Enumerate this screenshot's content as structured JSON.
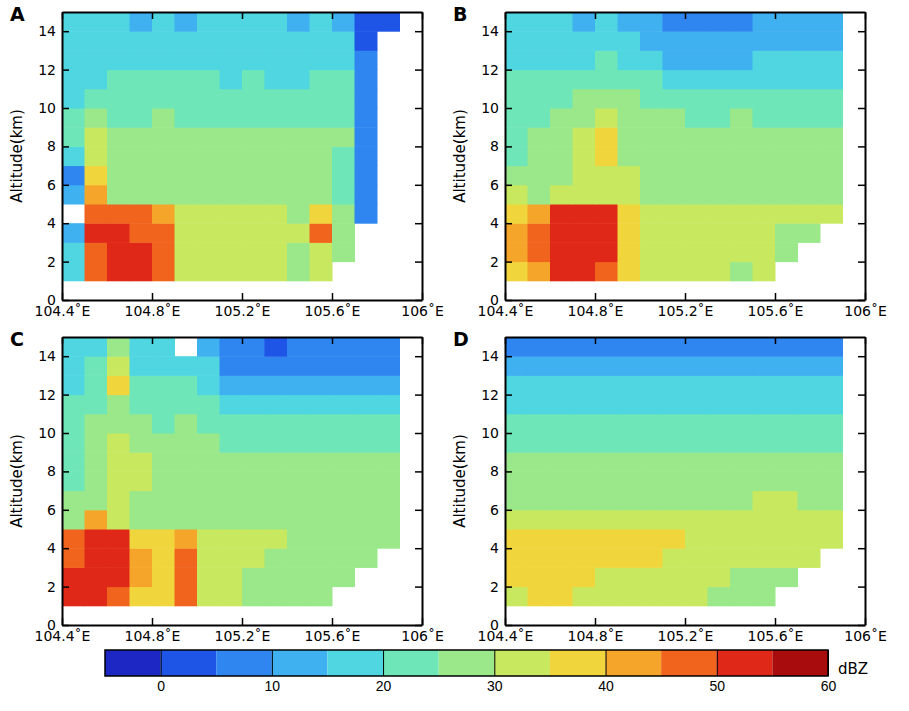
{
  "chart_data": [
    {
      "type": "heatmap",
      "title": "A",
      "y_label": "Altitude(km)",
      "x": [
        104.4,
        104.5,
        104.6,
        104.7,
        104.8,
        104.9,
        105.0,
        105.1,
        105.2,
        105.3,
        105.4,
        105.5,
        105.6,
        105.7,
        105.8,
        105.9
      ],
      "y": [
        1,
        2,
        3,
        4,
        5,
        6,
        7,
        8,
        9,
        10,
        11,
        12,
        13,
        14,
        15
      ],
      "values": [
        [
          18,
          45,
          52,
          50,
          48,
          33,
          32,
          32,
          30,
          30,
          28,
          30,
          null,
          null,
          null
        ],
        [
          15,
          48,
          52,
          50,
          45,
          34,
          32,
          32,
          30,
          30,
          28,
          33,
          25,
          null,
          null
        ],
        [
          12,
          50,
          50,
          48,
          45,
          34,
          32,
          33,
          32,
          30,
          30,
          45,
          28,
          null,
          null
        ],
        [
          null,
          45,
          48,
          45,
          42,
          33,
          32,
          32,
          30,
          30,
          28,
          38,
          25,
          5,
          null
        ],
        [
          10,
          40,
          28,
          27,
          27,
          27,
          25,
          25,
          25,
          25,
          25,
          25,
          22,
          5,
          null
        ],
        [
          5,
          35,
          25,
          25,
          25,
          25,
          25,
          25,
          25,
          25,
          25,
          25,
          22,
          5,
          null
        ],
        [
          15,
          30,
          25,
          25,
          27,
          25,
          25,
          25,
          25,
          25,
          25,
          25,
          22,
          8,
          null
        ],
        [
          20,
          30,
          25,
          25,
          27,
          25,
          25,
          25,
          25,
          25,
          25,
          25,
          25,
          8,
          null
        ],
        [
          20,
          28,
          22,
          22,
          25,
          22,
          22,
          22,
          22,
          22,
          22,
          22,
          22,
          5,
          null
        ],
        [
          18,
          20,
          22,
          20,
          22,
          20,
          20,
          20,
          20,
          20,
          20,
          22,
          20,
          5,
          null
        ],
        [
          18,
          18,
          20,
          20,
          20,
          20,
          20,
          18,
          20,
          18,
          18,
          20,
          20,
          5,
          null
        ],
        [
          15,
          15,
          18,
          18,
          18,
          15,
          15,
          18,
          18,
          18,
          18,
          18,
          18,
          5,
          null
        ],
        [
          15,
          15,
          15,
          15,
          15,
          15,
          15,
          15,
          15,
          15,
          15,
          15,
          15,
          0,
          null
        ],
        [
          15,
          15,
          15,
          12,
          15,
          12,
          15,
          15,
          15,
          15,
          12,
          15,
          10,
          0,
          0
        ]
      ],
      "xlim": [
        104.4,
        106
      ],
      "xticks": [
        {
          "value": 104.4,
          "label": "104.4˚E"
        },
        {
          "value": 104.8,
          "label": "104.8˚E"
        },
        {
          "value": 105.2,
          "label": "105.2˚E"
        },
        {
          "value": 105.6,
          "label": "105.6˚E"
        },
        {
          "value": 106,
          "label": "106˚E"
        }
      ],
      "ylim": [
        0,
        15
      ],
      "yticks": [
        0,
        2,
        4,
        6,
        8,
        10,
        12,
        14
      ]
    },
    {
      "type": "heatmap",
      "title": "B",
      "y_label": "Altitude(km)",
      "x": [
        104.4,
        104.5,
        104.6,
        104.7,
        104.8,
        104.9,
        105.0,
        105.1,
        105.2,
        105.3,
        105.4,
        105.5,
        105.6,
        105.7,
        105.8,
        105.9
      ],
      "y": [
        1,
        2,
        3,
        4,
        5,
        6,
        7,
        8,
        9,
        10,
        11,
        12,
        13,
        14,
        15
      ],
      "values": [
        [
          38,
          40,
          50,
          50,
          48,
          35,
          32,
          32,
          30,
          30,
          28,
          30,
          null,
          null,
          null
        ],
        [
          40,
          45,
          52,
          52,
          50,
          35,
          33,
          32,
          30,
          30,
          30,
          30,
          28,
          null,
          null
        ],
        [
          42,
          45,
          50,
          52,
          52,
          38,
          33,
          32,
          32,
          30,
          30,
          30,
          28,
          28,
          null
        ],
        [
          38,
          40,
          50,
          52,
          50,
          36,
          33,
          33,
          32,
          32,
          30,
          30,
          30,
          30,
          30
        ],
        [
          30,
          25,
          32,
          32,
          32,
          30,
          28,
          28,
          28,
          28,
          28,
          28,
          28,
          28,
          28
        ],
        [
          25,
          25,
          28,
          30,
          32,
          30,
          28,
          27,
          27,
          27,
          27,
          27,
          27,
          27,
          25
        ],
        [
          22,
          25,
          28,
          30,
          35,
          28,
          27,
          27,
          27,
          27,
          27,
          27,
          27,
          25,
          25
        ],
        [
          22,
          25,
          28,
          30,
          35,
          27,
          25,
          25,
          25,
          25,
          25,
          25,
          25,
          25,
          25
        ],
        [
          22,
          22,
          25,
          25,
          32,
          25,
          25,
          25,
          22,
          22,
          25,
          22,
          22,
          22,
          22
        ],
        [
          20,
          22,
          22,
          25,
          28,
          25,
          22,
          22,
          22,
          22,
          22,
          22,
          22,
          20,
          20
        ],
        [
          20,
          20,
          20,
          20,
          22,
          20,
          20,
          18,
          18,
          18,
          18,
          18,
          18,
          18,
          18
        ],
        [
          18,
          18,
          18,
          18,
          20,
          18,
          15,
          12,
          12,
          12,
          12,
          15,
          15,
          15,
          15
        ],
        [
          18,
          18,
          15,
          15,
          18,
          15,
          12,
          10,
          10,
          10,
          10,
          12,
          12,
          12,
          12
        ],
        [
          15,
          15,
          15,
          12,
          15,
          12,
          10,
          5,
          5,
          8,
          8,
          10,
          10,
          10,
          10
        ]
      ],
      "xlim": [
        104.4,
        106
      ],
      "xticks": [
        {
          "value": 104.4,
          "label": "104.4˚E"
        },
        {
          "value": 104.8,
          "label": "104.8˚E"
        },
        {
          "value": 105.2,
          "label": "105.2˚E"
        },
        {
          "value": 105.6,
          "label": "105.6˚E"
        },
        {
          "value": 106,
          "label": "106˚E"
        }
      ],
      "ylim": [
        0,
        15
      ],
      "yticks": [
        0,
        2,
        4,
        6,
        8,
        10,
        12,
        14
      ]
    },
    {
      "type": "heatmap",
      "title": "C",
      "y_label": "Altitude(km)",
      "x": [
        104.4,
        104.5,
        104.6,
        104.7,
        104.8,
        104.9,
        105.0,
        105.1,
        105.2,
        105.3,
        105.4,
        105.5,
        105.6,
        105.7,
        105.8,
        105.9
      ],
      "y": [
        1,
        2,
        3,
        4,
        5,
        6,
        7,
        8,
        9,
        10,
        11,
        12,
        13,
        14,
        15
      ],
      "values": [
        [
          50,
          52,
          48,
          38,
          35,
          45,
          30,
          30,
          28,
          28,
          28,
          28,
          null,
          null,
          null
        ],
        [
          50,
          52,
          50,
          40,
          38,
          45,
          30,
          30,
          28,
          28,
          28,
          28,
          28,
          null,
          null
        ],
        [
          48,
          52,
          52,
          40,
          38,
          48,
          32,
          30,
          30,
          28,
          28,
          28,
          28,
          28,
          null
        ],
        [
          45,
          52,
          50,
          38,
          35,
          40,
          32,
          30,
          30,
          30,
          28,
          28,
          28,
          28,
          28
        ],
        [
          28,
          40,
          30,
          28,
          28,
          28,
          28,
          28,
          28,
          28,
          28,
          28,
          28,
          28,
          28
        ],
        [
          25,
          28,
          30,
          28,
          28,
          28,
          28,
          28,
          28,
          28,
          28,
          28,
          28,
          28,
          28
        ],
        [
          22,
          28,
          32,
          30,
          28,
          28,
          28,
          28,
          28,
          28,
          28,
          25,
          25,
          25,
          25
        ],
        [
          22,
          28,
          32,
          30,
          28,
          28,
          28,
          25,
          25,
          25,
          25,
          25,
          25,
          25,
          25
        ],
        [
          22,
          28,
          30,
          28,
          25,
          28,
          25,
          22,
          22,
          22,
          22,
          22,
          22,
          22,
          22
        ],
        [
          20,
          25,
          28,
          25,
          22,
          25,
          22,
          20,
          20,
          20,
          20,
          20,
          20,
          20,
          20
        ],
        [
          20,
          22,
          28,
          22,
          22,
          22,
          20,
          18,
          15,
          15,
          15,
          15,
          15,
          15,
          15
        ],
        [
          18,
          22,
          38,
          20,
          20,
          20,
          18,
          12,
          10,
          10,
          10,
          10,
          10,
          10,
          10
        ],
        [
          18,
          20,
          30,
          18,
          18,
          18,
          15,
          8,
          5,
          5,
          5,
          5,
          5,
          8,
          8
        ],
        [
          15,
          18,
          25,
          15,
          15,
          null,
          12,
          5,
          5,
          0,
          5,
          5,
          5,
          5,
          5
        ]
      ],
      "xlim": [
        104.4,
        106
      ],
      "xticks": [
        {
          "value": 104.4,
          "label": "104.4˚E"
        },
        {
          "value": 104.8,
          "label": "104.8˚E"
        },
        {
          "value": 105.2,
          "label": "105.2˚E"
        },
        {
          "value": 105.6,
          "label": "105.6˚E"
        },
        {
          "value": 106,
          "label": "106˚E"
        }
      ],
      "ylim": [
        0,
        15
      ],
      "yticks": [
        0,
        2,
        4,
        6,
        8,
        10,
        12,
        14
      ]
    },
    {
      "type": "heatmap",
      "title": "D",
      "y_label": "Altitude(km)",
      "x": [
        104.4,
        104.5,
        104.6,
        104.7,
        104.8,
        104.9,
        105.0,
        105.1,
        105.2,
        105.3,
        105.4,
        105.5,
        105.6,
        105.7,
        105.8,
        105.9
      ],
      "y": [
        1,
        2,
        3,
        4,
        5,
        6,
        7,
        8,
        9,
        10,
        11,
        12,
        13,
        14,
        15
      ],
      "values": [
        [
          33,
          35,
          35,
          33,
          33,
          33,
          32,
          30,
          30,
          28,
          28,
          28,
          null,
          null,
          null
        ],
        [
          35,
          35,
          35,
          35,
          33,
          33,
          33,
          32,
          30,
          30,
          28,
          28,
          28,
          null,
          null
        ],
        [
          35,
          38,
          35,
          35,
          35,
          35,
          35,
          33,
          32,
          32,
          30,
          30,
          30,
          30,
          null
        ],
        [
          38,
          38,
          38,
          35,
          35,
          35,
          35,
          35,
          32,
          32,
          32,
          30,
          30,
          30,
          30
        ],
        [
          30,
          32,
          30,
          30,
          30,
          30,
          30,
          30,
          30,
          30,
          30,
          30,
          30,
          30,
          30
        ],
        [
          28,
          28,
          28,
          28,
          28,
          28,
          28,
          28,
          28,
          28,
          28,
          30,
          30,
          28,
          28
        ],
        [
          28,
          28,
          28,
          28,
          28,
          28,
          28,
          28,
          27,
          28,
          28,
          28,
          28,
          28,
          28
        ],
        [
          25,
          25,
          25,
          25,
          25,
          25,
          25,
          25,
          25,
          25,
          25,
          25,
          25,
          25,
          25
        ],
        [
          22,
          22,
          22,
          22,
          22,
          22,
          22,
          22,
          22,
          22,
          22,
          22,
          22,
          22,
          22
        ],
        [
          20,
          20,
          20,
          20,
          20,
          20,
          20,
          20,
          20,
          20,
          20,
          20,
          20,
          20,
          20
        ],
        [
          18,
          18,
          18,
          18,
          18,
          18,
          18,
          18,
          18,
          18,
          18,
          18,
          18,
          18,
          18
        ],
        [
          15,
          15,
          15,
          15,
          15,
          15,
          15,
          15,
          15,
          15,
          15,
          15,
          15,
          15,
          15
        ],
        [
          12,
          12,
          12,
          12,
          10,
          12,
          12,
          12,
          12,
          10,
          10,
          10,
          10,
          10,
          10
        ],
        [
          8,
          8,
          5,
          8,
          8,
          8,
          8,
          5,
          8,
          5,
          5,
          5,
          5,
          5,
          5
        ]
      ],
      "xlim": [
        104.4,
        106
      ],
      "xticks": [
        {
          "value": 104.4,
          "label": "104.4˚E"
        },
        {
          "value": 104.8,
          "label": "104.8˚E"
        },
        {
          "value": 105.2,
          "label": "105.2˚E"
        },
        {
          "value": 105.6,
          "label": "105.6˚E"
        },
        {
          "value": 106,
          "label": "106˚E"
        }
      ],
      "ylim": [
        0,
        15
      ],
      "yticks": [
        0,
        2,
        4,
        6,
        8,
        10,
        12,
        14
      ]
    }
  ],
  "colorbar": {
    "label": "dBZ",
    "range": [
      -5,
      60
    ],
    "ticks": [
      0,
      10,
      20,
      30,
      40,
      50,
      60
    ],
    "levels": [
      -5,
      0,
      5,
      10,
      15,
      20,
      25,
      30,
      35,
      40,
      45,
      50,
      55,
      60
    ],
    "colors": [
      "#1c27c4",
      "#1f55e6",
      "#2f86f0",
      "#3fb0f0",
      "#4fd6e0",
      "#6ee6b8",
      "#9ae88a",
      "#c8e860",
      "#f0d63c",
      "#f5a52a",
      "#f0641e",
      "#e02818",
      "#a80c0c"
    ]
  }
}
